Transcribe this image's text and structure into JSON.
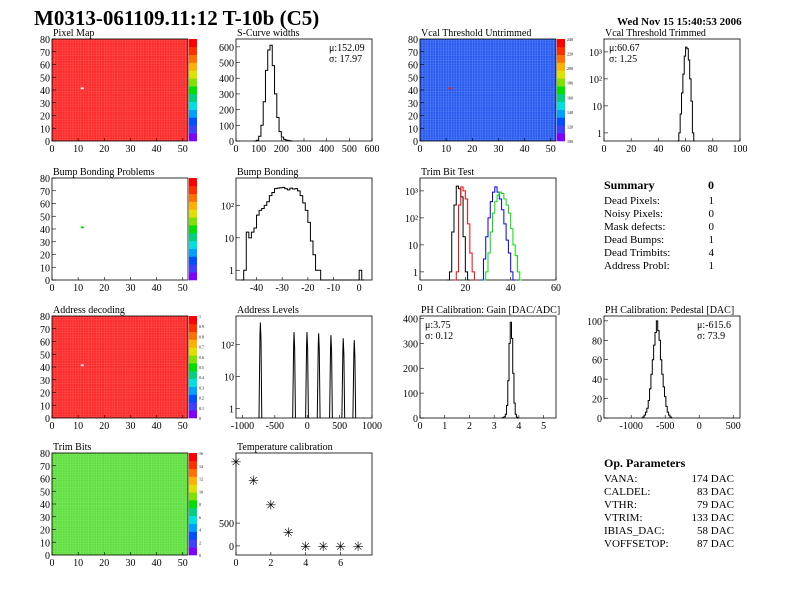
{
  "title": "M0313-061109.11:12 T-10b (C5)",
  "date": "Wed Nov 15 15:40:53 2006",
  "summary": {
    "title": "Summary",
    "value": "0",
    "rows": [
      {
        "label": "Dead Pixels:",
        "value": "1"
      },
      {
        "label": "Noisy Pixels:",
        "value": "0"
      },
      {
        "label": "Mask defects:",
        "value": "0"
      },
      {
        "label": "Dead Bumps:",
        "value": "1"
      },
      {
        "label": "Dead Trimbits:",
        "value": "4"
      },
      {
        "label": "Address Probl:",
        "value": "1"
      }
    ]
  },
  "op_parameters": {
    "title": "Op. Parameters",
    "rows": [
      {
        "label": "VANA:",
        "value": "174 DAC"
      },
      {
        "label": "CALDEL:",
        "value": "83 DAC"
      },
      {
        "label": "VTHR:",
        "value": "79 DAC"
      },
      {
        "label": "VTRIM:",
        "value": "133 DAC"
      },
      {
        "label": "IBIAS_DAC:",
        "value": "58 DAC"
      },
      {
        "label": "VOFFSETOP:",
        "value": "87 DAC"
      }
    ]
  },
  "colors": {
    "palette": [
      "#7f00ff",
      "#3f3fff",
      "#0050ff",
      "#00a0ff",
      "#00e0e0",
      "#00d080",
      "#00e000",
      "#80e000",
      "#e0e000",
      "#ffb000",
      "#ff7000",
      "#ff3000",
      "#ff0000"
    ],
    "hist": "#000000",
    "trim_series": [
      "#000000",
      "#ff0000",
      "#0000ff",
      "#00e000"
    ]
  },
  "chart_data": [
    {
      "id": "pixel_map",
      "type": "heatmap",
      "title": "Pixel Map",
      "xlim": [
        0,
        52
      ],
      "ylim": [
        0,
        80
      ],
      "xticks": [
        "0",
        "10",
        "20",
        "30",
        "40",
        "50"
      ],
      "yticks": [
        "0",
        "10",
        "20",
        "30",
        "40",
        "50",
        "60",
        "70",
        "80"
      ],
      "typical_value": 10,
      "zlim": [
        0,
        10
      ],
      "base_color": "#ff2a2a",
      "special_pixels": [
        {
          "x": 11,
          "y": 41,
          "z": 0,
          "color": "#ffffff"
        }
      ]
    },
    {
      "id": "scurve_widths",
      "type": "bar",
      "title": "S-Curve widths",
      "xlim": [
        0,
        600
      ],
      "ylim": [
        0,
        650
      ],
      "log": false,
      "xticks": [
        "0",
        "100",
        "200",
        "300",
        "400",
        "500",
        "600"
      ],
      "yticks": [
        "0",
        "100",
        "200",
        "300",
        "400",
        "500",
        "600"
      ],
      "bin_start": 80,
      "bin_width": 10,
      "values": [
        0,
        5,
        30,
        100,
        250,
        450,
        580,
        610,
        480,
        300,
        150,
        60,
        25,
        10,
        5,
        2,
        0
      ],
      "stats": {
        "mean": "μ:152.09",
        "sigma": "σ: 17.97",
        "position": "top-right"
      }
    },
    {
      "id": "vcal_untrimmed",
      "type": "heatmap",
      "title": "Vcal Threshold Untrimmed",
      "xlim": [
        0,
        52
      ],
      "ylim": [
        0,
        80
      ],
      "xticks": [
        "0",
        "10",
        "20",
        "30",
        "40",
        "50"
      ],
      "yticks": [
        "0",
        "10",
        "20",
        "30",
        "40",
        "50",
        "60",
        "70",
        "80"
      ],
      "typical_value": 120,
      "zlim": [
        95,
        245
      ],
      "base_color": "#2a5cf0",
      "zticks": [
        "100",
        "120",
        "140",
        "160",
        "180",
        "200",
        "220",
        "240"
      ],
      "special_pixels": [
        {
          "x": 11,
          "y": 41,
          "z": 245,
          "color": "#ff2000"
        }
      ]
    },
    {
      "id": "vcal_trimmed",
      "type": "bar",
      "title": "Vcal Threshold Trimmed",
      "xlim": [
        0,
        100
      ],
      "ylim": [
        0.5,
        3000
      ],
      "log": true,
      "xticks": [
        "0",
        "20",
        "40",
        "60",
        "80",
        "100"
      ],
      "yticks": [
        "1",
        "10",
        "10²",
        "10³"
      ],
      "bin_start": 54,
      "bin_width": 1,
      "values": [
        0,
        1,
        5,
        30,
        150,
        700,
        1500,
        1300,
        500,
        100,
        15,
        1,
        0
      ],
      "stats": {
        "mean": "μ:60.67",
        "sigma": "σ: 1.25",
        "position": "top-left"
      }
    },
    {
      "id": "bump_map",
      "type": "heatmap",
      "title": "Bump Bonding Problems",
      "xlim": [
        0,
        52
      ],
      "ylim": [
        0,
        80
      ],
      "xticks": [
        "0",
        "10",
        "20",
        "30",
        "40",
        "50"
      ],
      "yticks": [
        "0",
        "10",
        "20",
        "30",
        "40",
        "50",
        "60",
        "70",
        "80"
      ],
      "typical_value": null,
      "zlim": [
        0,
        2
      ],
      "base_color": "#ffffff",
      "special_pixels": [
        {
          "x": 11,
          "y": 41,
          "z": 1,
          "color": "#00e000"
        }
      ]
    },
    {
      "id": "bump_bonding",
      "type": "bar",
      "title": "Bump Bonding",
      "xlim": [
        -48,
        5
      ],
      "ylim": [
        0.5,
        700
      ],
      "log": true,
      "xticks": [
        "-40",
        "-30",
        "-20",
        "-10",
        "0"
      ],
      "yticks": [
        "1",
        "10",
        "10²"
      ],
      "bin_start": -46,
      "bin_width": 1,
      "values": [
        0,
        1,
        15,
        10,
        15,
        20,
        50,
        70,
        80,
        100,
        130,
        200,
        250,
        330,
        340,
        350,
        360,
        330,
        300,
        340,
        320,
        330,
        280,
        200,
        120,
        70,
        30,
        8,
        3,
        1,
        1,
        0,
        0,
        0,
        0,
        0,
        0,
        0,
        0,
        0,
        0,
        0,
        0,
        0,
        0,
        0,
        1,
        0
      ]
    },
    {
      "id": "trim_bit_test",
      "type": "bar",
      "title": "Trim Bit Test",
      "xlim": [
        0,
        60
      ],
      "ylim": [
        0.5,
        3000
      ],
      "log": true,
      "xticks": [
        "0",
        "20",
        "40",
        "60"
      ],
      "yticks": [
        "1",
        "10",
        "10²",
        "10³"
      ],
      "series": [
        {
          "bin_start": 12,
          "bin_width": 1,
          "values": [
            0,
            1,
            30,
            300,
            1500,
            1200,
            600,
            20,
            1,
            0
          ]
        },
        {
          "bin_start": 15,
          "bin_width": 1,
          "values": [
            0,
            1,
            300,
            1400,
            1000,
            500,
            60,
            5,
            1,
            0
          ]
        },
        {
          "bin_start": 27,
          "bin_width": 1,
          "values": [
            0,
            3,
            20,
            100,
            400,
            900,
            1400,
            900,
            500,
            200,
            60,
            15,
            5,
            1,
            0
          ]
        },
        {
          "bin_start": 28,
          "bin_width": 1,
          "values": [
            0,
            1,
            5,
            30,
            150,
            400,
            700,
            900,
            800,
            500,
            300,
            150,
            40,
            10,
            4,
            1,
            0
          ]
        }
      ]
    },
    {
      "id": "address_decoding",
      "type": "heatmap",
      "title": "Address decoding",
      "xlim": [
        0,
        52
      ],
      "ylim": [
        0,
        80
      ],
      "xticks": [
        "0",
        "10",
        "20",
        "30",
        "40",
        "50"
      ],
      "yticks": [
        "0",
        "10",
        "20",
        "30",
        "40",
        "50",
        "60",
        "70",
        "80"
      ],
      "typical_value": 1,
      "zlim": [
        0,
        1
      ],
      "base_color": "#ff2a2a",
      "zticks": [
        "0",
        "0.1",
        "0.2",
        "0.3",
        "0.4",
        "0.5",
        "0.6",
        "0.7",
        "0.8",
        "0.9",
        "1"
      ],
      "special_pixels": [
        {
          "x": 11,
          "y": 41,
          "z": 0,
          "color": "#ffe0e0"
        }
      ]
    },
    {
      "id": "address_levels",
      "type": "line",
      "title": "Address Levels",
      "xlim": [
        -1100,
        1000
      ],
      "ylim": [
        0.5,
        800
      ],
      "log": true,
      "xticks": [
        "-1000",
        "-500",
        "0",
        "500",
        "1000"
      ],
      "yticks": [
        "1",
        "10",
        "10²"
      ],
      "peaks": [
        {
          "x": -720,
          "height": 500
        },
        {
          "x": -200,
          "height": 250
        },
        {
          "x": 0,
          "height": 250
        },
        {
          "x": 180,
          "height": 230
        },
        {
          "x": 370,
          "height": 200
        },
        {
          "x": 560,
          "height": 160
        },
        {
          "x": 730,
          "height": 140
        }
      ]
    },
    {
      "id": "ph_gain",
      "type": "bar",
      "title": "PH Calibration: Gain [DAC/ADC]",
      "xlim": [
        0,
        5.5
      ],
      "ylim": [
        0,
        410
      ],
      "log": false,
      "xticks": [
        "0",
        "1",
        "2",
        "3",
        "4",
        "5"
      ],
      "yticks": [
        "0",
        "100",
        "200",
        "300",
        "400"
      ],
      "bin_start": 3.3,
      "bin_width": 0.05,
      "values": [
        0,
        2,
        5,
        15,
        50,
        150,
        300,
        385,
        320,
        180,
        60,
        15,
        3,
        0
      ],
      "stats": {
        "mean": "μ:3.75",
        "sigma": "σ: 0.12",
        "position": "top-left"
      }
    },
    {
      "id": "ph_pedestal",
      "type": "bar",
      "title": "PH Calibration: Pedestal [DAC]",
      "xlim": [
        -1400,
        600
      ],
      "ylim": [
        0,
        105
      ],
      "log": false,
      "xticks": [
        "-1000",
        "-500",
        "0",
        "500"
      ],
      "yticks": [
        "0",
        "20",
        "40",
        "60",
        "80",
        "100"
      ],
      "bin_start": -850,
      "bin_width": 20,
      "values": [
        0,
        1,
        3,
        6,
        10,
        18,
        30,
        45,
        60,
        75,
        88,
        100,
        90,
        80,
        60,
        45,
        32,
        22,
        12,
        6,
        3,
        1,
        0
      ],
      "stats": {
        "mean": "μ:-615.6",
        "sigma": "σ: 73.9",
        "position": "top-right"
      }
    },
    {
      "id": "trim_bits",
      "type": "heatmap",
      "title": "Trim Bits",
      "xlim": [
        0,
        52
      ],
      "ylim": [
        0,
        80
      ],
      "xticks": [
        "0",
        "10",
        "20",
        "30",
        "40",
        "50"
      ],
      "yticks": [
        "0",
        "10",
        "20",
        "30",
        "40",
        "50",
        "60",
        "70",
        "80"
      ],
      "typical_value": 9,
      "zlim": [
        0,
        16
      ],
      "base_color": "#60e040",
      "zticks": [
        "0",
        "2",
        "4",
        "6",
        "8",
        "10",
        "12",
        "14",
        "16"
      ],
      "special_pixels": []
    },
    {
      "id": "temperature_calibration",
      "type": "scatter",
      "title": "Temperature calibration",
      "xlim": [
        0,
        7.8
      ],
      "ylim": [
        -200,
        2040
      ],
      "log": false,
      "xticks": [
        "0",
        "2",
        "4",
        "6"
      ],
      "yticks": [
        "0",
        "500"
      ],
      "x": [
        0,
        1,
        2,
        3,
        4,
        5,
        6,
        7
      ],
      "y": [
        1850,
        1450,
        910,
        300,
        0,
        0,
        0,
        0
      ]
    }
  ]
}
